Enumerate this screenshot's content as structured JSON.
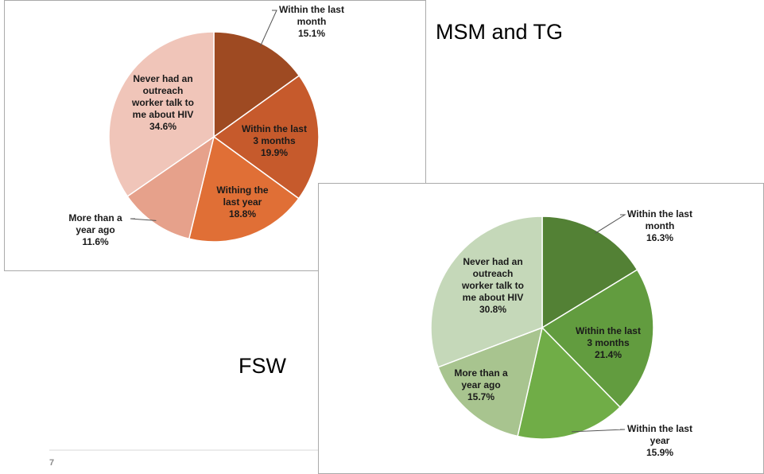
{
  "slide": {
    "labels": [
      "MSM and TG",
      "FSW"
    ],
    "page_number": "7"
  },
  "chart_data": [
    {
      "type": "pie",
      "categories": [
        "Within the last month",
        "Within the last 3 months",
        "Withing the last year",
        "More than a year ago",
        "Never had an outreach worker talk to me about HIV"
      ],
      "values": [
        15.1,
        19.9,
        18.8,
        11.6,
        34.6
      ],
      "value_labels": [
        "15.1%",
        "19.9%",
        "18.8%",
        "11.6%",
        "34.6%"
      ],
      "colors": [
        "#9e4a22",
        "#c65a2c",
        "#e06f36",
        "#e6a18b",
        "#f0c5b9"
      ]
    },
    {
      "type": "pie",
      "categories": [
        "Within the last month",
        "Within the last 3 months",
        "Within the last year",
        "More than a year ago",
        "Never had an outreach worker talk to me about HIV"
      ],
      "values": [
        16.3,
        21.4,
        15.9,
        15.7,
        30.8
      ],
      "value_labels": [
        "16.3%",
        "21.4%",
        "15.9%",
        "15.7%",
        "30.8%"
      ],
      "colors": [
        "#538135",
        "#629c3f",
        "#70ad47",
        "#a8c48f",
        "#c5d8b9"
      ]
    }
  ]
}
